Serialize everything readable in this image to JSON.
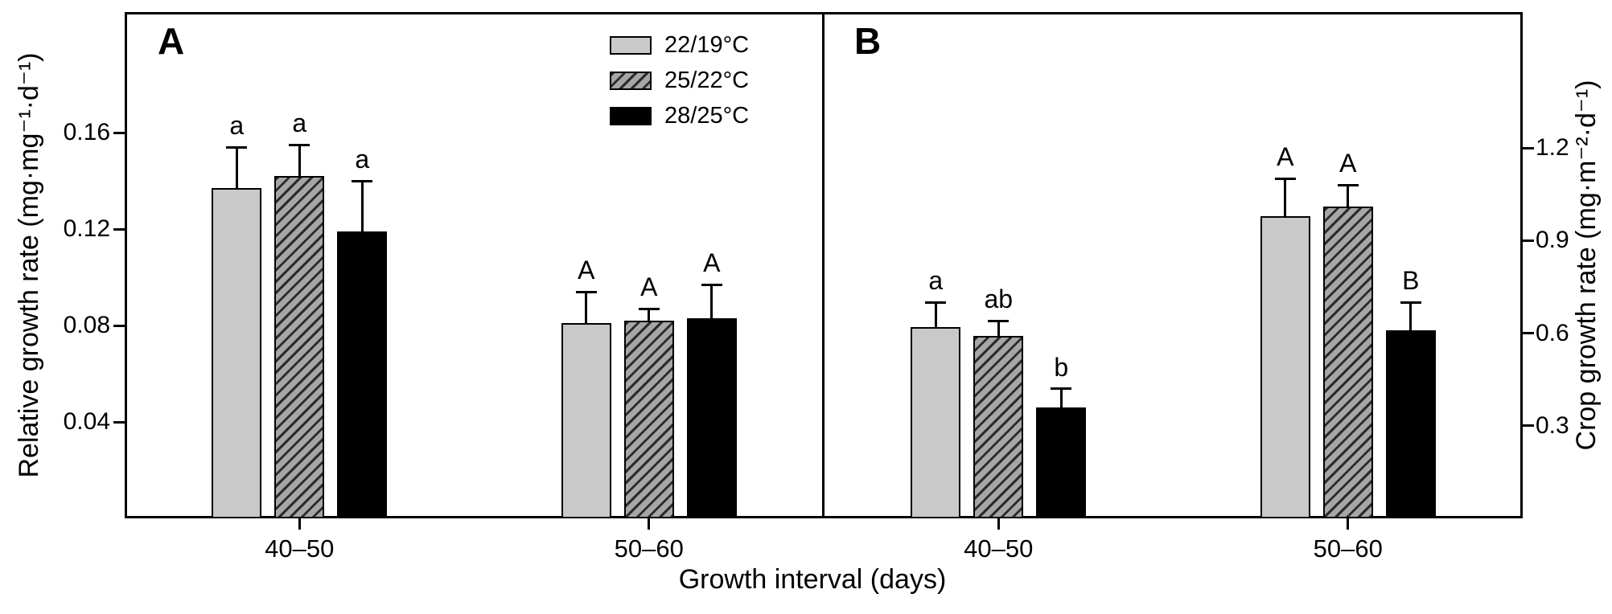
{
  "figure": {
    "xlabel": "Growth interval (days)",
    "background": "#ffffff"
  },
  "legend": {
    "position": "top-right-of-panel-A",
    "entries": [
      {
        "label": "22/19°C",
        "fill": "light-gray"
      },
      {
        "label": "25/22°C",
        "fill": "hatched"
      },
      {
        "label": "28/25°C",
        "fill": "black"
      }
    ]
  },
  "colors": {
    "bar_light_gray": "#c9c9c9",
    "bar_hatch_bg": "#a6a6a6",
    "bar_hatch_line": "#2b2b2b",
    "bar_black": "#000000",
    "axis": "#000000",
    "text": "#000000"
  },
  "chart_data": [
    {
      "type": "bar",
      "panel": "A",
      "axis_side": "left",
      "ylabel": "Relative growth rate (mg·mg⁻¹·d⁻¹)",
      "xlabel": "Growth interval (days)",
      "ylim": [
        0,
        0.21
      ],
      "yticks": [
        0.04,
        0.08,
        0.12,
        0.16
      ],
      "ytick_labels": [
        "0.04",
        "0.08",
        "0.12",
        "0.16"
      ],
      "categories": [
        "40–50",
        "50–60"
      ],
      "grid": false,
      "error_bars": "upper, capped",
      "series": [
        {
          "name": "22/19°C",
          "fill": "light-gray",
          "values": [
            0.137,
            0.081
          ],
          "errors": [
            0.017,
            0.013
          ],
          "letters": [
            "a",
            "A"
          ]
        },
        {
          "name": "25/22°C",
          "fill": "hatched",
          "values": [
            0.142,
            0.082
          ],
          "errors": [
            0.013,
            0.005
          ],
          "letters": [
            "a",
            "A"
          ]
        },
        {
          "name": "28/25°C",
          "fill": "black",
          "values": [
            0.119,
            0.083
          ],
          "errors": [
            0.021,
            0.014
          ],
          "letters": [
            "a",
            "A"
          ]
        }
      ]
    },
    {
      "type": "bar",
      "panel": "B",
      "axis_side": "right",
      "ylabel": "Crop growth rate (mg·m⁻²·d⁻¹)",
      "xlabel": "Growth interval (days)",
      "ylim": [
        0,
        1.64
      ],
      "yticks": [
        0.3,
        0.6,
        0.9,
        1.2
      ],
      "ytick_labels": [
        "0.3",
        "0.6",
        "0.9",
        "1.2"
      ],
      "categories": [
        "40–50",
        "50–60"
      ],
      "grid": false,
      "error_bars": "upper, capped",
      "series": [
        {
          "name": "22/19°C",
          "fill": "light-gray",
          "values": [
            0.62,
            0.98
          ],
          "errors": [
            0.08,
            0.12
          ],
          "letters": [
            "a",
            "A"
          ]
        },
        {
          "name": "25/22°C",
          "fill": "hatched",
          "values": [
            0.59,
            1.01
          ],
          "errors": [
            0.05,
            0.07
          ],
          "letters": [
            "ab",
            "A"
          ]
        },
        {
          "name": "28/25°C",
          "fill": "black",
          "values": [
            0.36,
            0.61
          ],
          "errors": [
            0.06,
            0.09
          ],
          "letters": [
            "b",
            "B"
          ]
        }
      ]
    }
  ]
}
